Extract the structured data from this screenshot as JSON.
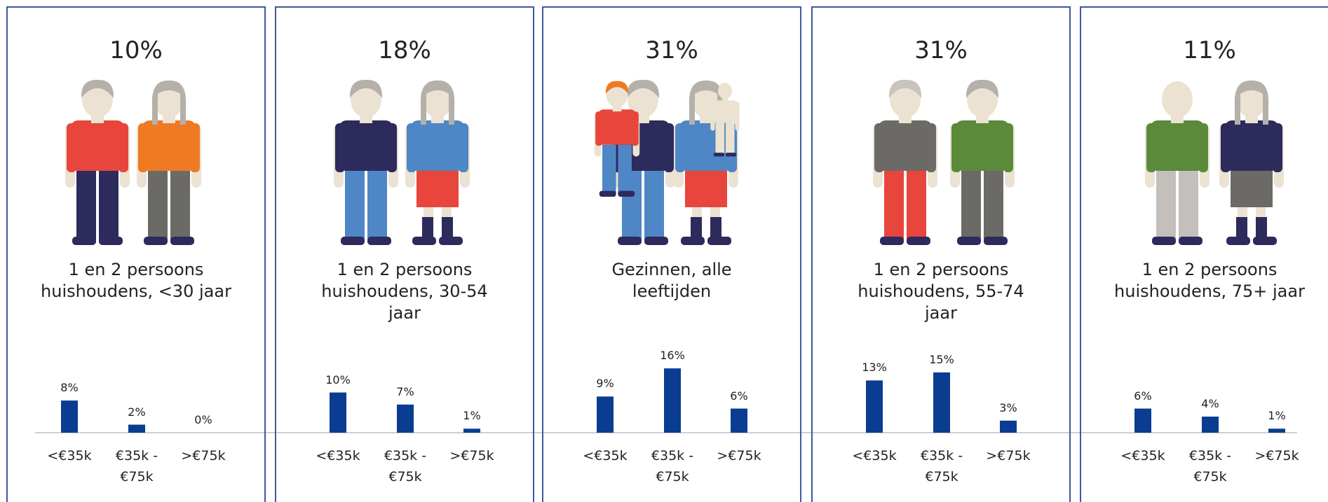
{
  "chart_data": [
    {
      "type": "bar",
      "title": "10%",
      "subtitle": "1 en 2 persoons huishoudens, <30 jaar",
      "categories": [
        "<€35k",
        "€35k - €75k",
        ">€75k"
      ],
      "values": [
        8,
        2,
        0
      ],
      "value_labels": [
        "8%",
        "2%",
        "0%"
      ],
      "color": "#0a3d91"
    },
    {
      "type": "bar",
      "title": "18%",
      "subtitle": "1 en 2 persoons huishoudens, 30-54 jaar",
      "categories": [
        "<€35k",
        "€35k - €75k",
        ">€75k"
      ],
      "values": [
        10,
        7,
        1
      ],
      "value_labels": [
        "10%",
        "7%",
        "1%"
      ],
      "color": "#0a3d91"
    },
    {
      "type": "bar",
      "title": "31%",
      "subtitle": "Gezinnen, alle leeftijden",
      "categories": [
        "<€35k",
        "€35k - €75k",
        ">€75k"
      ],
      "values": [
        9,
        16,
        6
      ],
      "value_labels": [
        "9%",
        "16%",
        "6%"
      ],
      "color": "#0a3d91"
    },
    {
      "type": "bar",
      "title": "31%",
      "subtitle": "1 en 2 persoons huishoudens, 55-74 jaar",
      "categories": [
        "<€35k",
        "€35k - €75k",
        ">€75k"
      ],
      "values": [
        13,
        15,
        3
      ],
      "value_labels": [
        "13%",
        "15%",
        "3%"
      ],
      "color": "#0a3d91"
    },
    {
      "type": "bar",
      "title": "11%",
      "subtitle": "1 en 2 persoons huishoudens, 75+ jaar",
      "categories": [
        "<€35k",
        "€35k - €75k",
        ">€75k"
      ],
      "values": [
        6,
        4,
        1
      ],
      "value_labels": [
        "6%",
        "4%",
        "1%"
      ],
      "color": "#0a3d91"
    }
  ]
}
